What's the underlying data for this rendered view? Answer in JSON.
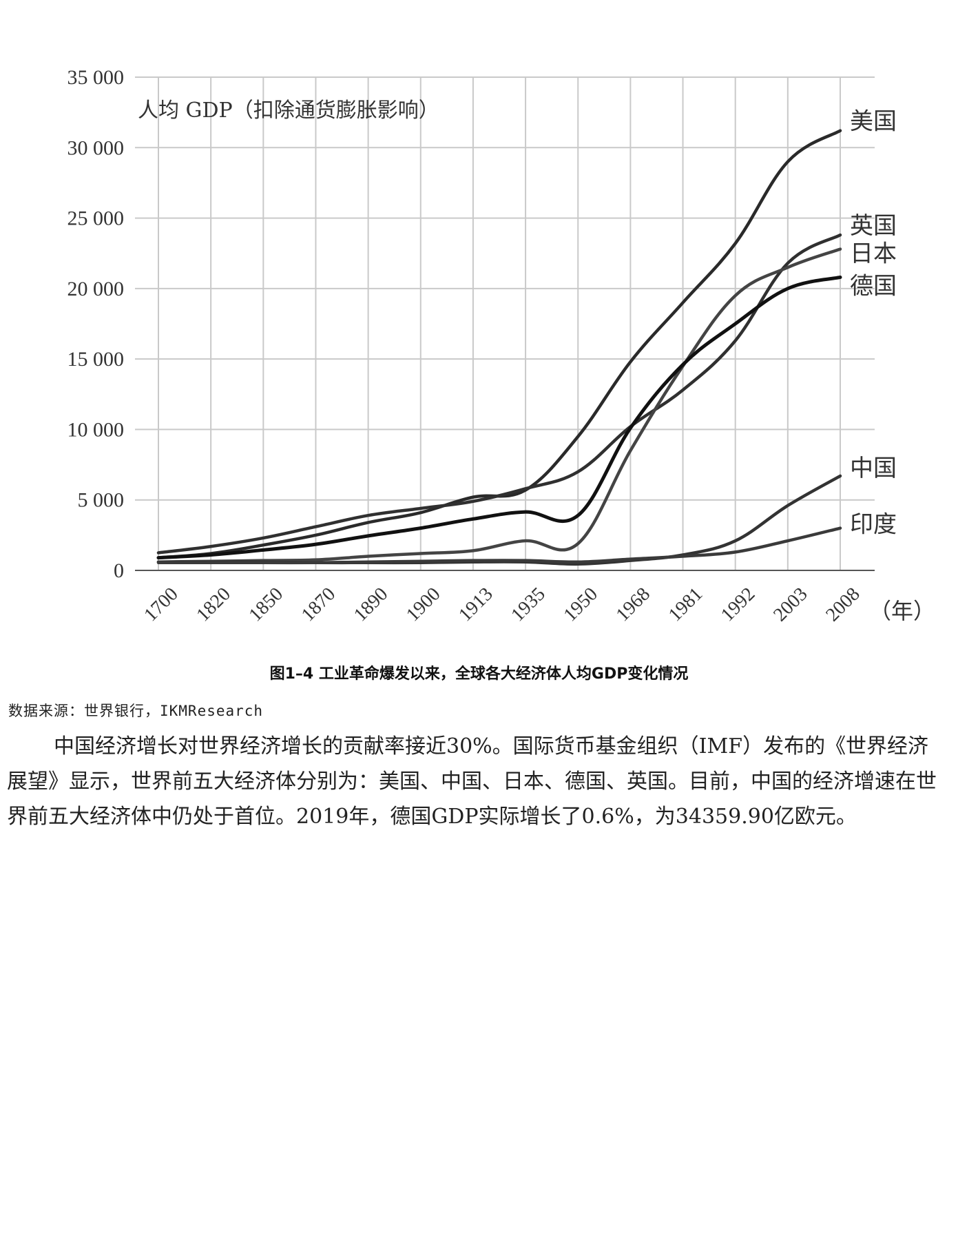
{
  "chart_data": {
    "type": "line",
    "title": "",
    "ylabel": "人均 GDP（扣除通货膨胀影响）",
    "xlabel": "（年）",
    "ylim": [
      0,
      35000
    ],
    "yticks": [
      0,
      5000,
      10000,
      15000,
      20000,
      25000,
      30000,
      35000
    ],
    "ytick_labels": [
      "0",
      "5 000",
      "10 000",
      "15 000",
      "20 000",
      "25 000",
      "30 000",
      "35 000"
    ],
    "categories": [
      "1700",
      "1820",
      "1850",
      "1870",
      "1890",
      "1900",
      "1913",
      "1935",
      "1950",
      "1968",
      "1981",
      "1992",
      "2003",
      "2008"
    ],
    "grid": true,
    "legend": "series labels at right end of lines",
    "series": [
      {
        "name": "美国",
        "color": "#2a2a2a",
        "values": [
          900,
          1200,
          1800,
          2500,
          3400,
          4100,
          5200,
          5700,
          9500,
          14800,
          19000,
          23200,
          29000,
          31200
        ]
      },
      {
        "name": "英国",
        "color": "#303030",
        "values": [
          1250,
          1700,
          2300,
          3100,
          3900,
          4400,
          4900,
          5800,
          7000,
          10200,
          12800,
          16300,
          21800,
          23800
        ]
      },
      {
        "name": "日本",
        "color": "#444444",
        "values": [
          600,
          650,
          700,
          750,
          1000,
          1200,
          1400,
          2100,
          1900,
          8500,
          14500,
          19500,
          21500,
          22800
        ]
      },
      {
        "name": "德国",
        "color": "#111111",
        "values": [
          900,
          1100,
          1450,
          1850,
          2450,
          3000,
          3650,
          4150,
          3900,
          10100,
          14600,
          17500,
          20000,
          20800
        ]
      },
      {
        "name": "中国",
        "color": "#333333",
        "values": [
          600,
          600,
          600,
          550,
          550,
          550,
          600,
          600,
          450,
          700,
          1100,
          2100,
          4600,
          6700
        ]
      },
      {
        "name": "印度",
        "color": "#3a3a3a",
        "values": [
          550,
          550,
          550,
          550,
          600,
          650,
          700,
          700,
          600,
          800,
          1000,
          1300,
          2100,
          3000
        ]
      }
    ]
  },
  "caption": "图1–4 工业革命爆发以来，全球各大经济体人均GDP变化情况",
  "source": "数据来源：世界银行，IKMResearch",
  "paragraph": "中国经济增长对世界经济增长的贡献率接近30%。国际货币基金组织（IMF）发布的《世界经济展望》显示，世界前五大经济体分别为：美国、中国、日本、德国、英国。目前，中国的经济增速在世界前五大经济体中仍处于首位。2019年，德国GDP实际增长了0.6%，为34359.90亿欧元。"
}
